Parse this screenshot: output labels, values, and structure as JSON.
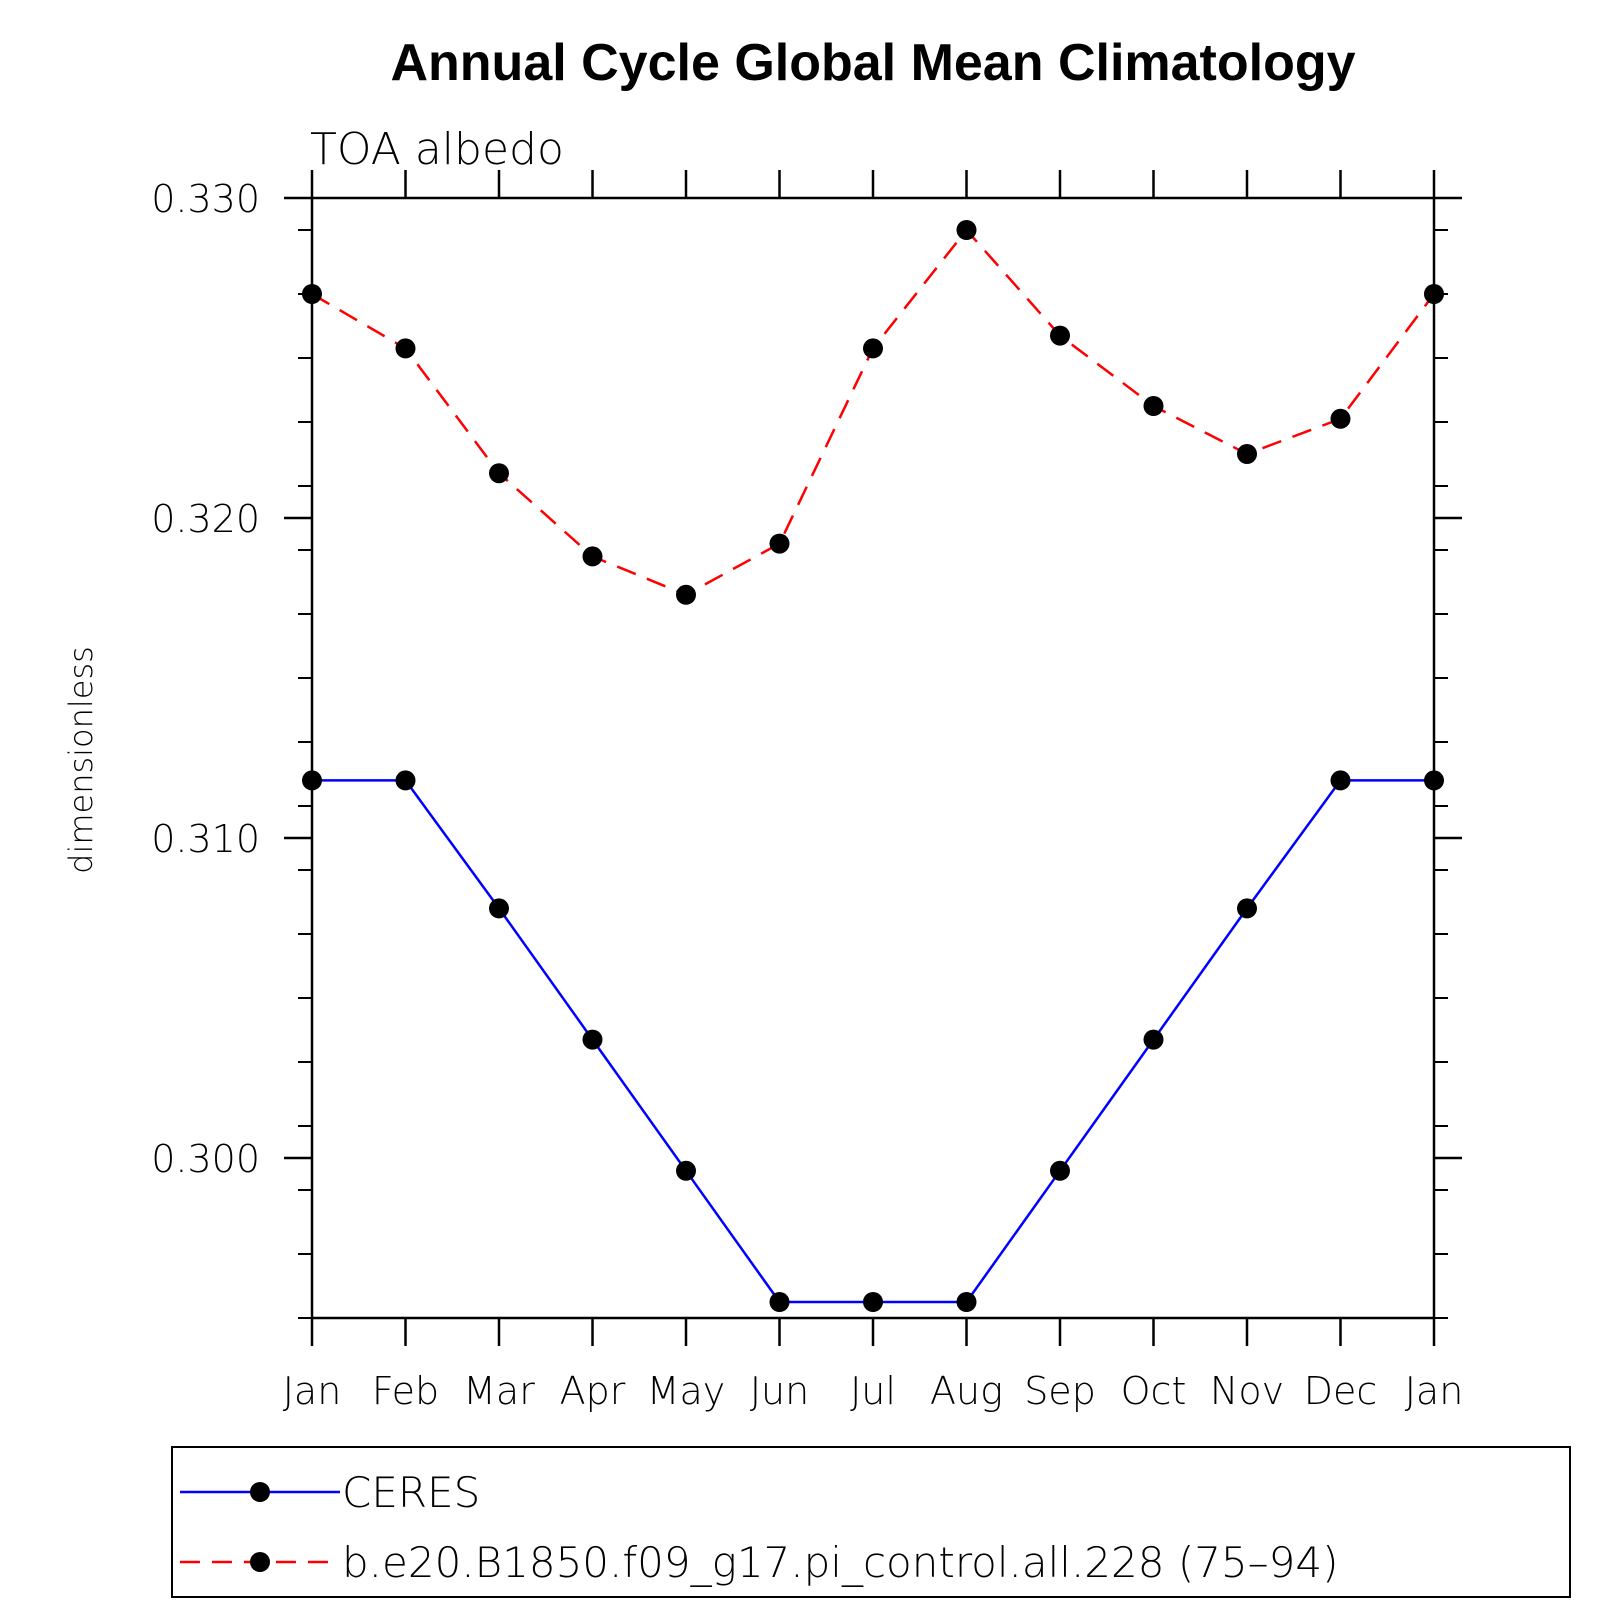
{
  "chart_data": {
    "type": "line",
    "title": "Annual Cycle Global Mean Climatology",
    "subtitle": "TOA albedo",
    "xlabel": "",
    "ylabel": "dimensionless",
    "categories": [
      "Jan",
      "Feb",
      "Mar",
      "Apr",
      "May",
      "Jun",
      "Jul",
      "Aug",
      "Sep",
      "Oct",
      "Nov",
      "Dec",
      "Jan"
    ],
    "ylim": [
      0.295,
      0.33
    ],
    "yticks": [
      "0.300",
      "0.310",
      "0.320",
      "0.330"
    ],
    "ytick_values": [
      0.3,
      0.31,
      0.32,
      0.33
    ],
    "legend_position": "bottom",
    "series": [
      {
        "name": "CERES",
        "color": "#0000ff",
        "style": "solid",
        "marker": "filled-circle",
        "values": [
          0.3118,
          0.3118,
          0.3078,
          0.3037,
          0.2996,
          0.2955,
          0.2955,
          0.2955,
          0.2996,
          0.3037,
          0.3078,
          0.3118,
          0.3118
        ]
      },
      {
        "name": "b.e20.B1850.f09_g17.pi_control.all.228 (75–94)",
        "color": "#ff0000",
        "style": "dashed",
        "marker": "filled-circle",
        "values": [
          0.327,
          0.3253,
          0.3214,
          0.3188,
          0.3176,
          0.3192,
          0.3253,
          0.329,
          0.3257,
          0.3235,
          0.322,
          0.3231,
          0.327
        ]
      }
    ]
  }
}
